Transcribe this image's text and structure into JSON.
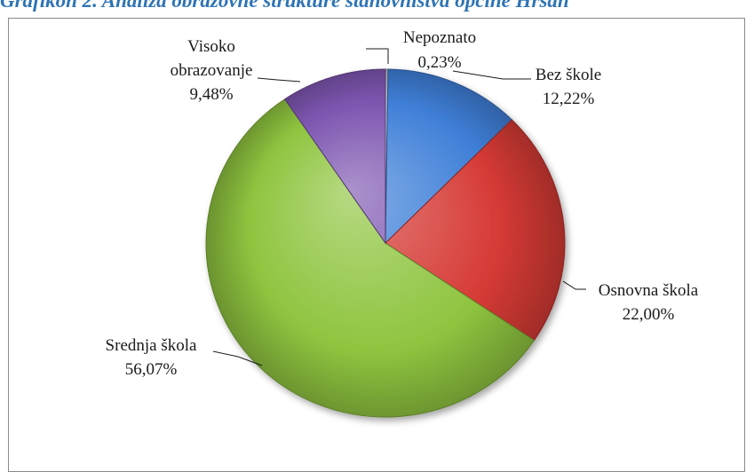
{
  "title": "Grafikon 2. Analiza obrazovne strukture stanovništva općine Hrsan",
  "chart_data": {
    "type": "pie",
    "title": "",
    "slices": [
      {
        "label": "Nepoznato",
        "value": 0.23,
        "value_text": "0,23%",
        "color": "#c8c8c8"
      },
      {
        "label": "Bez škole",
        "value": 12.22,
        "value_text": "12,22%",
        "color": "#3f7fd8"
      },
      {
        "label": "Osnovna škola",
        "value": 22.0,
        "value_text": "22,00%",
        "color": "#d63a35"
      },
      {
        "label": "Srednja škola",
        "value": 56.07,
        "value_text": "56,07%",
        "color": "#8fc43f"
      },
      {
        "label": "Visoko obrazovanje",
        "value": 9.48,
        "value_text": "9,48%",
        "color": "#7d55b0"
      }
    ],
    "label_lines": {
      "Visoko obrazovanje": [
        "Visoko",
        "obrazovanje"
      ]
    },
    "start_angle": "12 o'clock, clockwise",
    "legend": "none (leader-line labels)"
  }
}
